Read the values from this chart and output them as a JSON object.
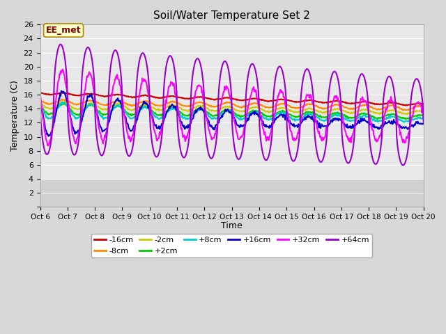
{
  "title": "Soil/Water Temperature Set 2",
  "xlabel": "Time",
  "ylabel": "Temperature (C)",
  "ylim": [
    0,
    26
  ],
  "annotation": "EE_met",
  "bg_color": "#d8d8d8",
  "plot_bg": "#e8e8e8",
  "x_tick_labels": [
    "Oct 6",
    "Oct 7",
    "Oct 8",
    "Oct 9",
    "Oct 10",
    "Oct 11",
    "Oct 12",
    "Oct 13",
    "Oct 14",
    "Oct 15",
    "Oct 16",
    "Oct 17",
    "Oct 18",
    "Oct 19",
    "Oct 20"
  ],
  "series": {
    "-16cm": {
      "color": "#cc0000",
      "lw": 1.5
    },
    "-8cm": {
      "color": "#ff8800",
      "lw": 1.5
    },
    "-2cm": {
      "color": "#cccc00",
      "lw": 1.5
    },
    "+2cm": {
      "color": "#00cc00",
      "lw": 1.5
    },
    "+8cm": {
      "color": "#00cccc",
      "lw": 1.5
    },
    "+16cm": {
      "color": "#0000cc",
      "lw": 1.5
    },
    "+32cm": {
      "color": "#ff00ff",
      "lw": 1.5
    },
    "+64cm": {
      "color": "#9900cc",
      "lw": 1.5
    }
  },
  "legend_order": [
    "-16cm",
    "-8cm",
    "-2cm",
    "+2cm",
    "+8cm",
    "+16cm",
    "+32cm",
    "+64cm"
  ]
}
